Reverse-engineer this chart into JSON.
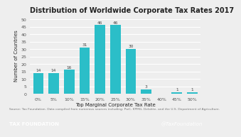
{
  "title": "Distribution of Worldwide Corporate Tax Rates 2017",
  "xlabel": "Top Marginal Corporate Tax Rate",
  "ylabel": "Number of Countries",
  "categories": [
    "0%",
    "5%",
    "10%",
    "15%",
    "20%",
    "25%",
    "30%",
    "35%",
    "40%",
    "45%",
    "50%"
  ],
  "values": [
    14,
    14,
    16,
    31,
    46,
    46,
    30,
    3,
    0,
    1,
    1
  ],
  "bar_color": "#2bbec8",
  "ylim": [
    0,
    52
  ],
  "yticks": [
    0,
    5,
    10,
    15,
    20,
    25,
    30,
    35,
    40,
    45,
    50
  ],
  "source_text": "Source: Tax Foundation. Data compiled from numerous sources including: PwC, KPMG, Deloitte, and the U.S. Department of Agriculture.",
  "footer_left": "TAX FOUNDATION",
  "footer_right": "@TaxFoundation",
  "footer_bg": "#1b9fd0",
  "bg_color": "#eeeeee",
  "plot_bg": "#eeeeee",
  "grid_color": "#ffffff",
  "title_fontsize": 7.0,
  "label_fontsize": 5.0,
  "tick_fontsize": 4.5,
  "bar_label_fontsize": 4.2,
  "source_fontsize": 3.2,
  "footer_fontsize": 5.0,
  "title_color": "#222222",
  "axis_color": "#555555",
  "source_color": "#777777"
}
